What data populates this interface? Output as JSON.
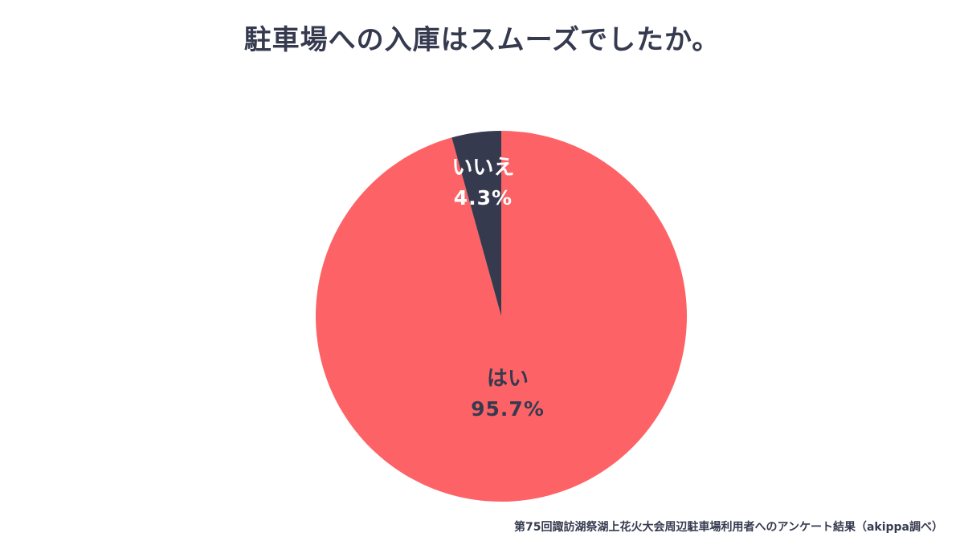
{
  "chart_data": {
    "type": "pie",
    "title": "駐車場への入庫はスムーズでしたか。",
    "slices": [
      {
        "label": "はい",
        "value": 95.7,
        "display": "95.7%",
        "color": "#fd6366",
        "text_color": "#353a4f"
      },
      {
        "label": "いいえ",
        "value": 4.3,
        "display": "4.3%",
        "color": "#353a4f",
        "text_color": "#ffffff"
      }
    ],
    "legend": "none"
  },
  "source": "第75回諏訪湖祭湖上花火大会周辺駐車場利用者へのアンケート結果（akippa調べ）"
}
